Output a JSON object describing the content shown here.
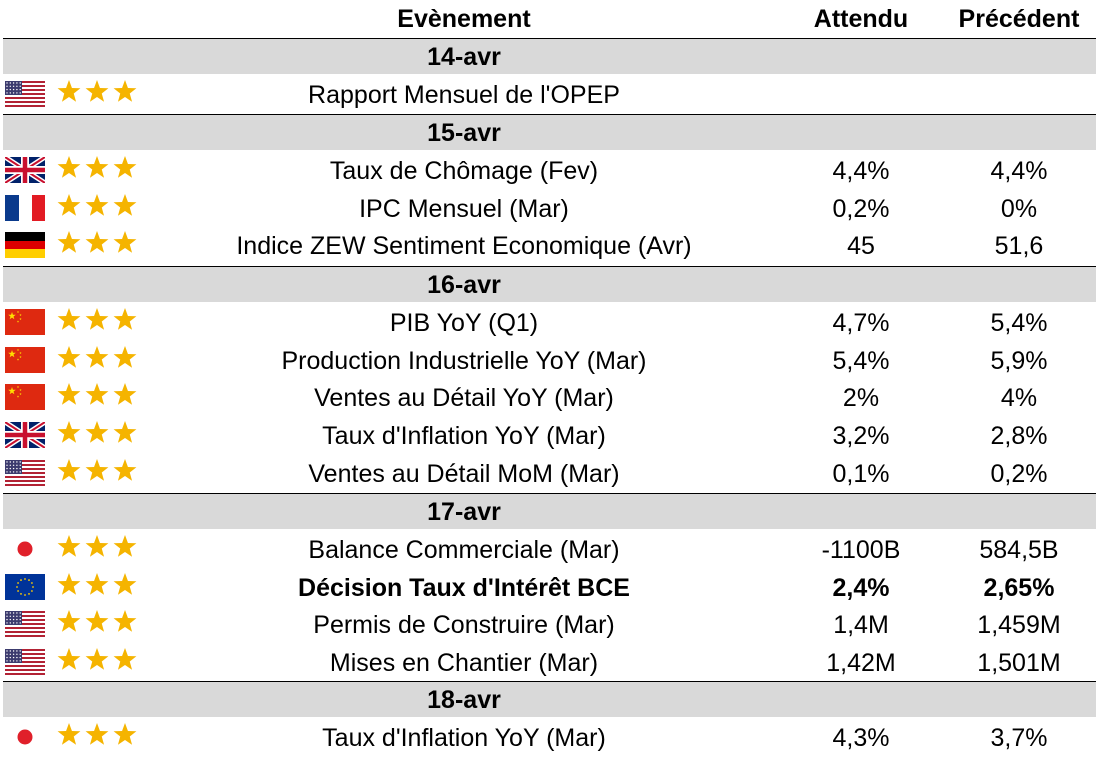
{
  "header": {
    "event": "Evènement",
    "expected": "Attendu",
    "previous": "Précédent"
  },
  "colors": {
    "date_band": "#d9d9d9",
    "star": "#f5b400"
  },
  "groups": [
    {
      "date": "14-avr",
      "rows": [
        {
          "flag": "us-flag-icon",
          "stars": 3,
          "event": "Rapport Mensuel de l'OPEP",
          "expected": "",
          "previous": "",
          "bold": false
        }
      ]
    },
    {
      "date": "15-avr",
      "rows": [
        {
          "flag": "uk-flag-icon",
          "stars": 3,
          "event": "Taux de Chômage (Fev)",
          "expected": "4,4%",
          "previous": "4,4%",
          "bold": false
        },
        {
          "flag": "france-flag-icon",
          "stars": 3,
          "event": "IPC Mensuel (Mar)",
          "expected": "0,2%",
          "previous": "0%",
          "bold": false
        },
        {
          "flag": "germany-flag-icon",
          "stars": 3,
          "event": "Indice ZEW Sentiment Economique (Avr)",
          "expected": "45",
          "previous": "51,6",
          "bold": false
        }
      ]
    },
    {
      "date": "16-avr",
      "rows": [
        {
          "flag": "china-flag-icon",
          "stars": 3,
          "event": "PIB YoY (Q1)",
          "expected": "4,7%",
          "previous": "5,4%",
          "bold": false
        },
        {
          "flag": "china-flag-icon",
          "stars": 3,
          "event": "Production Industrielle YoY (Mar)",
          "expected": "5,4%",
          "previous": "5,9%",
          "bold": false
        },
        {
          "flag": "china-flag-icon",
          "stars": 3,
          "event": "Ventes au Détail YoY (Mar)",
          "expected": "2%",
          "previous": "4%",
          "bold": false
        },
        {
          "flag": "uk-flag-icon",
          "stars": 3,
          "event": "Taux d'Inflation YoY (Mar)",
          "expected": "3,2%",
          "previous": "2,8%",
          "bold": false
        },
        {
          "flag": "us-flag-icon",
          "stars": 3,
          "event": "Ventes au Détail MoM (Mar)",
          "expected": "0,1%",
          "previous": "0,2%",
          "bold": false
        }
      ]
    },
    {
      "date": "17-avr",
      "rows": [
        {
          "flag": "japan-flag-icon",
          "stars": 3,
          "event": "Balance Commerciale (Mar)",
          "expected": "-1100B",
          "previous": "584,5B",
          "bold": false
        },
        {
          "flag": "eu-flag-icon",
          "stars": 3,
          "event": "Décision Taux d'Intérêt BCE",
          "expected": "2,4%",
          "previous": "2,65%",
          "bold": true
        },
        {
          "flag": "us-flag-icon",
          "stars": 3,
          "event": "Permis de Construire (Mar)",
          "expected": "1,4M",
          "previous": "1,459M",
          "bold": false
        },
        {
          "flag": "us-flag-icon",
          "stars": 3,
          "event": "Mises en Chantier (Mar)",
          "expected": "1,42M",
          "previous": "1,501M",
          "bold": false
        }
      ]
    },
    {
      "date": "18-avr",
      "rows": [
        {
          "flag": "japan-flag-icon",
          "stars": 3,
          "event": "Taux d'Inflation YoY (Mar)",
          "expected": "4,3%",
          "previous": "3,7%",
          "bold": false
        }
      ]
    }
  ]
}
